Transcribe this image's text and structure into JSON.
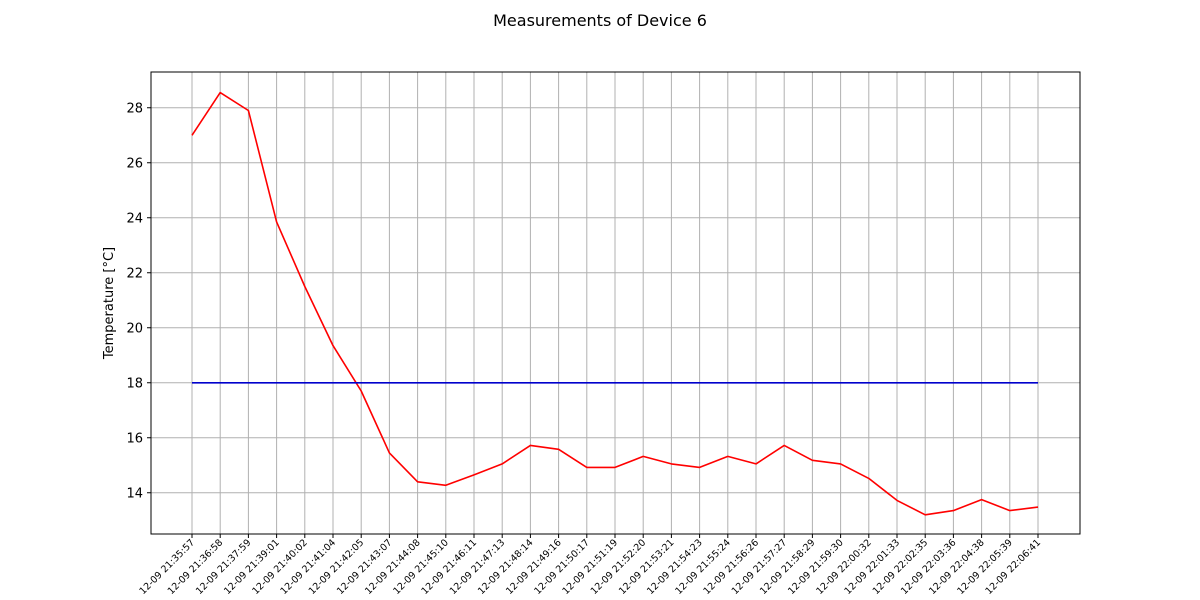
{
  "chart_data": {
    "type": "line",
    "title": "Measurements of Device 6",
    "xlabel": "",
    "ylabel": "Temperature [°C]",
    "ylim": [
      12.5,
      29.3
    ],
    "yticks": [
      14,
      16,
      18,
      20,
      22,
      24,
      26,
      28
    ],
    "grid": true,
    "legend": "none",
    "categories": [
      "12-09 21:35:57",
      "12-09 21:36:58",
      "12-09 21:37:59",
      "12-09 21:39:01",
      "12-09 21:40:02",
      "12-09 21:41:04",
      "12-09 21:42:05",
      "12-09 21:43:07",
      "12-09 21:44:08",
      "12-09 21:45:10",
      "12-09 21:46:11",
      "12-09 21:47:13",
      "12-09 21:48:14",
      "12-09 21:49:16",
      "12-09 21:50:17",
      "12-09 21:51:19",
      "12-09 21:52:20",
      "12-09 21:53:21",
      "12-09 21:54:23",
      "12-09 21:55:24",
      "12-09 21:56:26",
      "12-09 21:57:27",
      "12-09 21:58:29",
      "12-09 21:59:30",
      "12-09 22:00:32",
      "12-09 22:01:33",
      "12-09 22:02:35",
      "12-09 22:03:36",
      "12-09 22:04:38",
      "12-09 22:05:39",
      "12-09 22:06:41"
    ],
    "series": [
      {
        "color": "#ff0000",
        "values": [
          27.0,
          28.55,
          27.9,
          23.85,
          21.5,
          19.35,
          17.7,
          15.45,
          14.4,
          14.27,
          14.65,
          15.05,
          15.72,
          15.58,
          14.92,
          14.92,
          15.32,
          15.05,
          14.92,
          15.32,
          15.05,
          15.72,
          15.18,
          15.05,
          14.52,
          13.72,
          13.2,
          13.35,
          13.75,
          13.35,
          13.48
        ]
      },
      {
        "color": "#0000cc",
        "values": [
          18,
          18,
          18,
          18,
          18,
          18,
          18,
          18,
          18,
          18,
          18,
          18,
          18,
          18,
          18,
          18,
          18,
          18,
          18,
          18,
          18,
          18,
          18,
          18,
          18,
          18,
          18,
          18,
          18,
          18,
          18
        ]
      }
    ]
  }
}
